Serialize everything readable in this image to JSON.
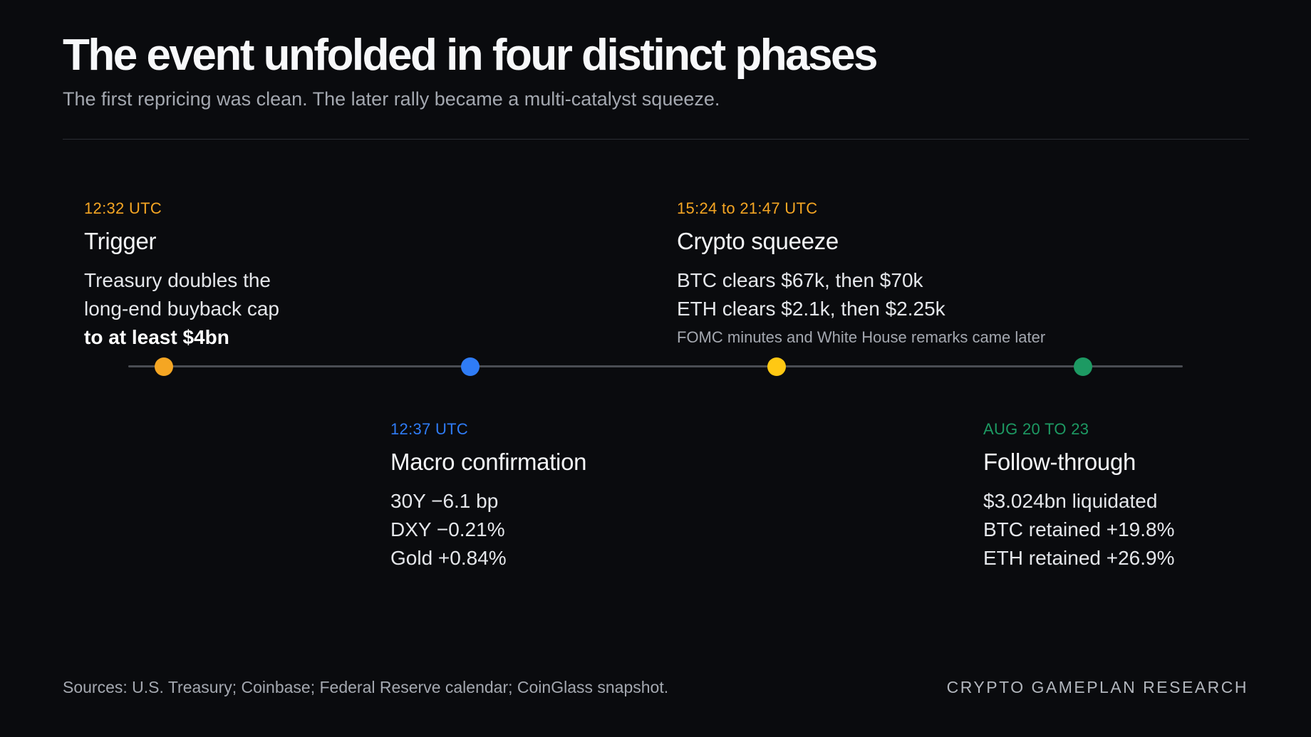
{
  "title": "The event unfolded in four distinct phases",
  "subtitle": "The first repricing was clean. The later rally became a multi-catalyst squeeze.",
  "phases": [
    {
      "time": "12:32 UTC",
      "name": "Trigger",
      "color": "#f5a623",
      "lines": [
        "Treasury doubles the",
        "long-end buyback cap"
      ],
      "strong_line": "to at least $4bn"
    },
    {
      "time": "12:37 UTC",
      "name": "Macro confirmation",
      "color": "#2f7cf6",
      "lines": [
        "30Y −6.1 bp",
        "DXY −0.21%",
        "Gold +0.84%"
      ]
    },
    {
      "time": "15:24 to 21:47 UTC",
      "name": "Crypto squeeze",
      "color": "#f5a623",
      "dot_color": "#ffc813",
      "lines": [
        "BTC clears $67k, then $70k",
        "ETH clears $2.1k, then $2.25k"
      ],
      "note": "FOMC minutes and White House remarks came later"
    },
    {
      "time": "AUG 20 TO 23",
      "name": "Follow-through",
      "color": "#1d9a63",
      "lines": [
        "$3.024bn liquidated",
        "BTC retained +19.8%",
        "ETH retained +26.9%"
      ]
    }
  ],
  "footer": {
    "sources": "Sources: U.S. Treasury; Coinbase; Federal Reserve calendar; CoinGlass snapshot.",
    "brand": "CRYPTO GAMEPLAN RESEARCH"
  }
}
